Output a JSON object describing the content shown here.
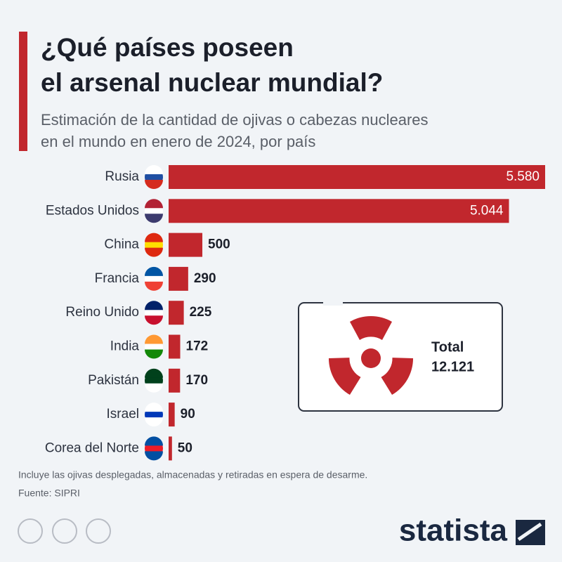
{
  "chart_data": {
    "type": "bar",
    "orientation": "horizontal",
    "title": "¿Qué países poseen el arsenal nuclear mundial?",
    "title_lines": [
      "¿Qué países poseen",
      "el arsenal nuclear mundial?"
    ],
    "subtitle_lines": [
      "Estimación de la cantidad de ojivas o cabezas nucleares",
      "en el mundo en enero de 2024, por país"
    ],
    "categories": [
      "Rusia",
      "Estados Unidos",
      "China",
      "Francia",
      "Reino Unido",
      "India",
      "Pakistán",
      "Israel",
      "Corea del Norte"
    ],
    "values": [
      5580,
      5044,
      500,
      290,
      225,
      172,
      170,
      90,
      50
    ],
    "value_labels": [
      "5.580",
      "5.044",
      "500",
      "290",
      "225",
      "172",
      "170",
      "90",
      "50"
    ],
    "color": "#c1272d",
    "xlim": [
      0,
      5580
    ],
    "annotation": {
      "title": "Total",
      "text": "12.121"
    },
    "notes": [
      "Incluye las ojivas desplegadas, almacenadas y retiradas en espera de desarme.",
      "Fuente: SIPRI"
    ],
    "brand": "statista"
  }
}
